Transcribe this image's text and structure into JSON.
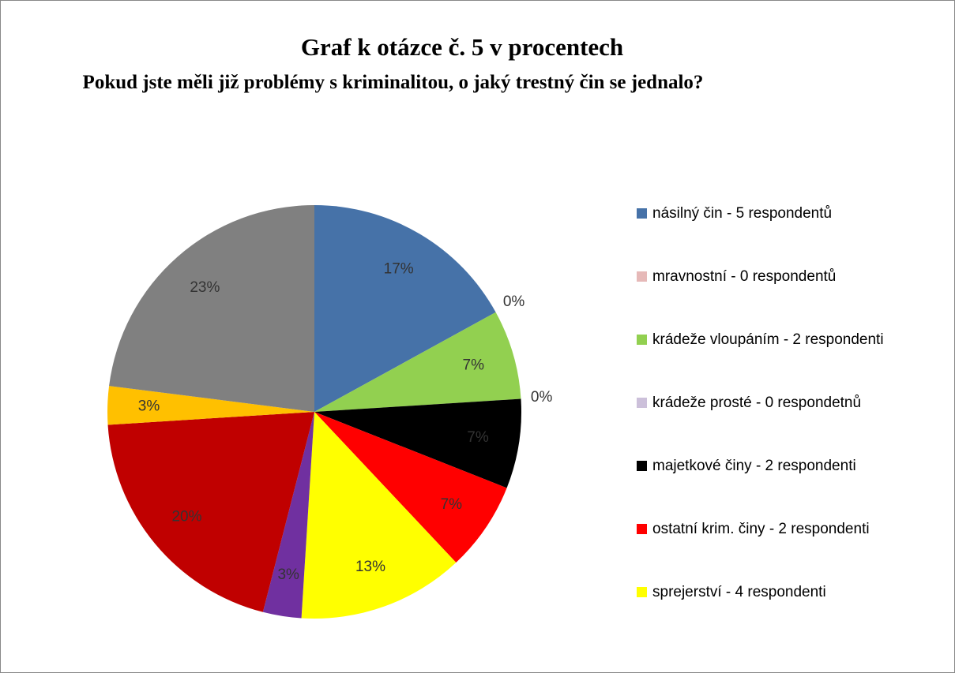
{
  "chart_data": {
    "type": "pie",
    "title": "Graf k otázce č. 5 v procentech",
    "subtitle": "Pokud jste měli již problémy s kriminalitou, o jaký trestný čin se jednalo?",
    "categories": [
      "násilný čin - 5 respondentů",
      "mravnostní  - 0 respondentů",
      "krádeže vloupáním - 2 respondenti",
      "krádeže prosté - 0 respondetnů",
      "majetkové činy - 2 respondenti",
      "ostatní krim. činy - 2 respondenti",
      "sprejerství - 4 respondenti",
      null,
      null,
      null,
      null
    ],
    "values": [
      17,
      0,
      7,
      0,
      7,
      7,
      13,
      3,
      20,
      3,
      23
    ],
    "value_labels": [
      "17%",
      "0%",
      "7%",
      "0%",
      "7%",
      "7%",
      "13%",
      "3%",
      "20%",
      "3%",
      "23%"
    ],
    "colors": [
      "#4672a8",
      "#e6b9b8",
      "#92d050",
      "#ccc0da",
      "#000000",
      "#ff0000",
      "#ffff00",
      "#7030a0",
      "#c00000",
      "#ffc000",
      "#808080"
    ],
    "legend": "right"
  }
}
